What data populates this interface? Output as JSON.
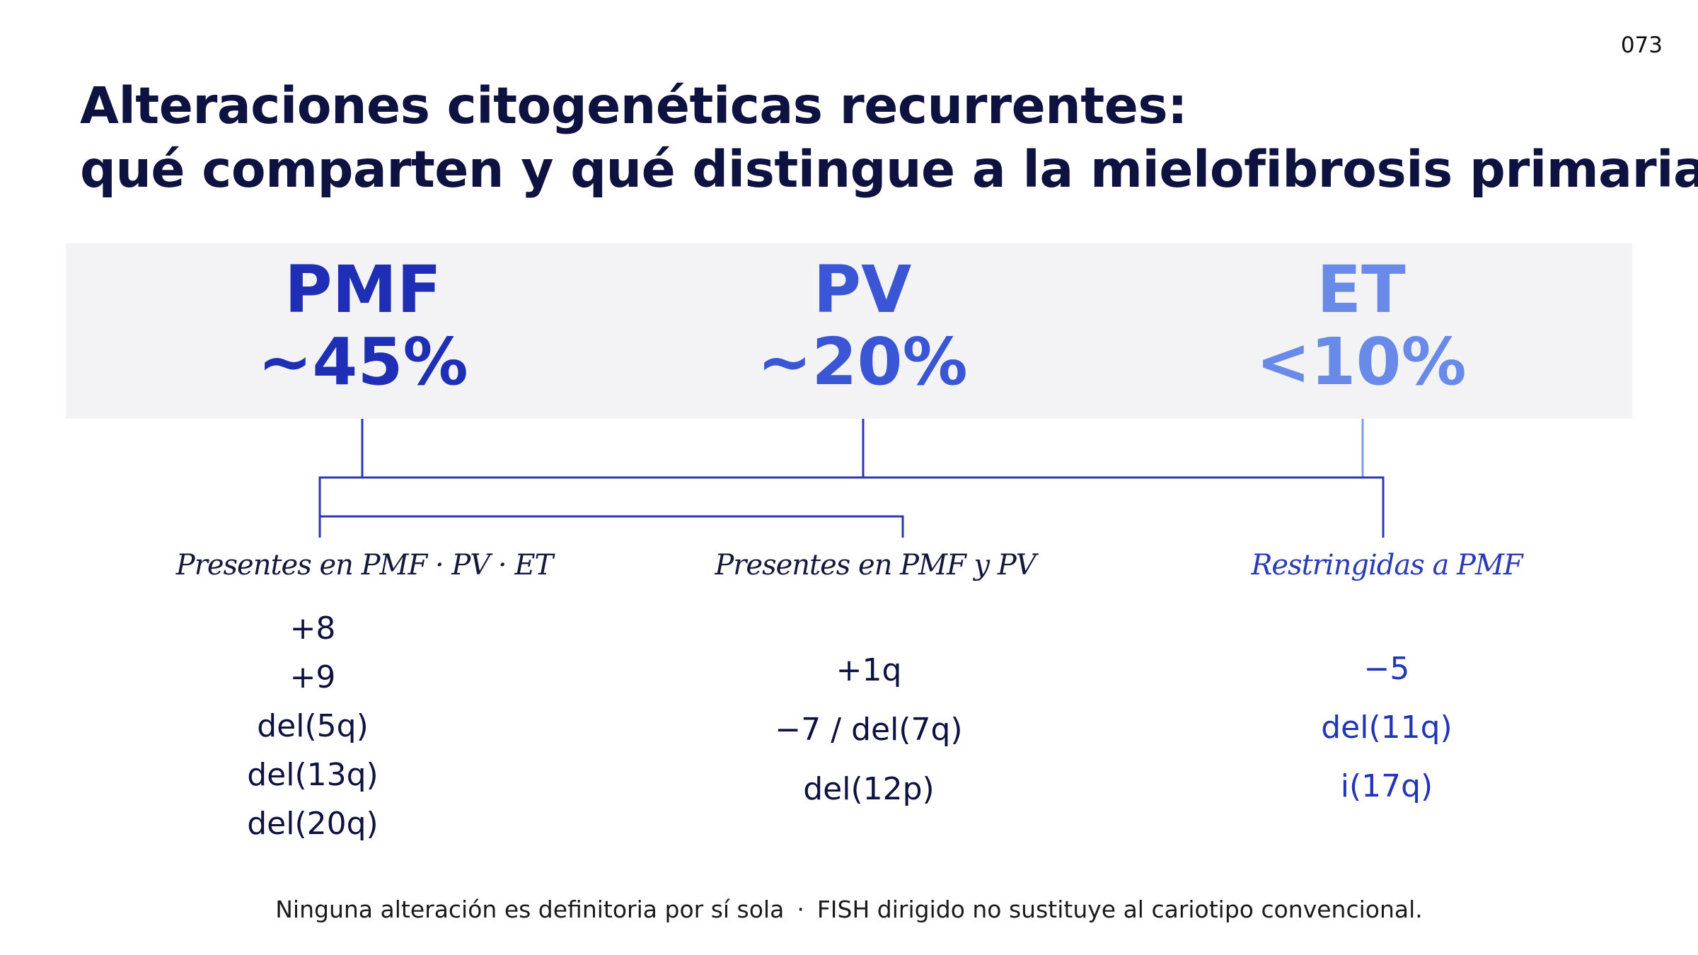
{
  "slide_number": "073",
  "title": {
    "line1": "Alteraciones citogenéticas recurrentes:",
    "line2": "qué comparten y qué distingue a la mielofibrosis primaria"
  },
  "groups": [
    {
      "name": "PMF",
      "frequency": "~45%",
      "color": "#1f2fb5"
    },
    {
      "name": "PV",
      "frequency": "~20%",
      "color": "#3a56d4"
    },
    {
      "name": "ET",
      "frequency": "<10%",
      "color": "#6a8ae9"
    }
  ],
  "columns": [
    {
      "label": "Presentes en PMF · PV · ET",
      "items": [
        "+8",
        "+9",
        "del(5q)",
        "del(13q)",
        "del(20q)"
      ]
    },
    {
      "label": "Presentes en PMF y PV",
      "items": [
        "+1q",
        "−7 / del(7q)",
        "del(12p)"
      ]
    },
    {
      "label": "Restringidas a PMF",
      "color": "#2235b8",
      "items": [
        "−5",
        "del(11q)",
        "i(17q)"
      ]
    }
  ],
  "footnote": {
    "part1": "Ninguna alteración es definitoria por sí sola",
    "separator": "·",
    "part2": "FISH dirigido no sustituye al cariotipo convencional."
  },
  "colors": {
    "title": "#0d1240",
    "band": "#f3f3f6",
    "connector": "#2b36b8"
  }
}
